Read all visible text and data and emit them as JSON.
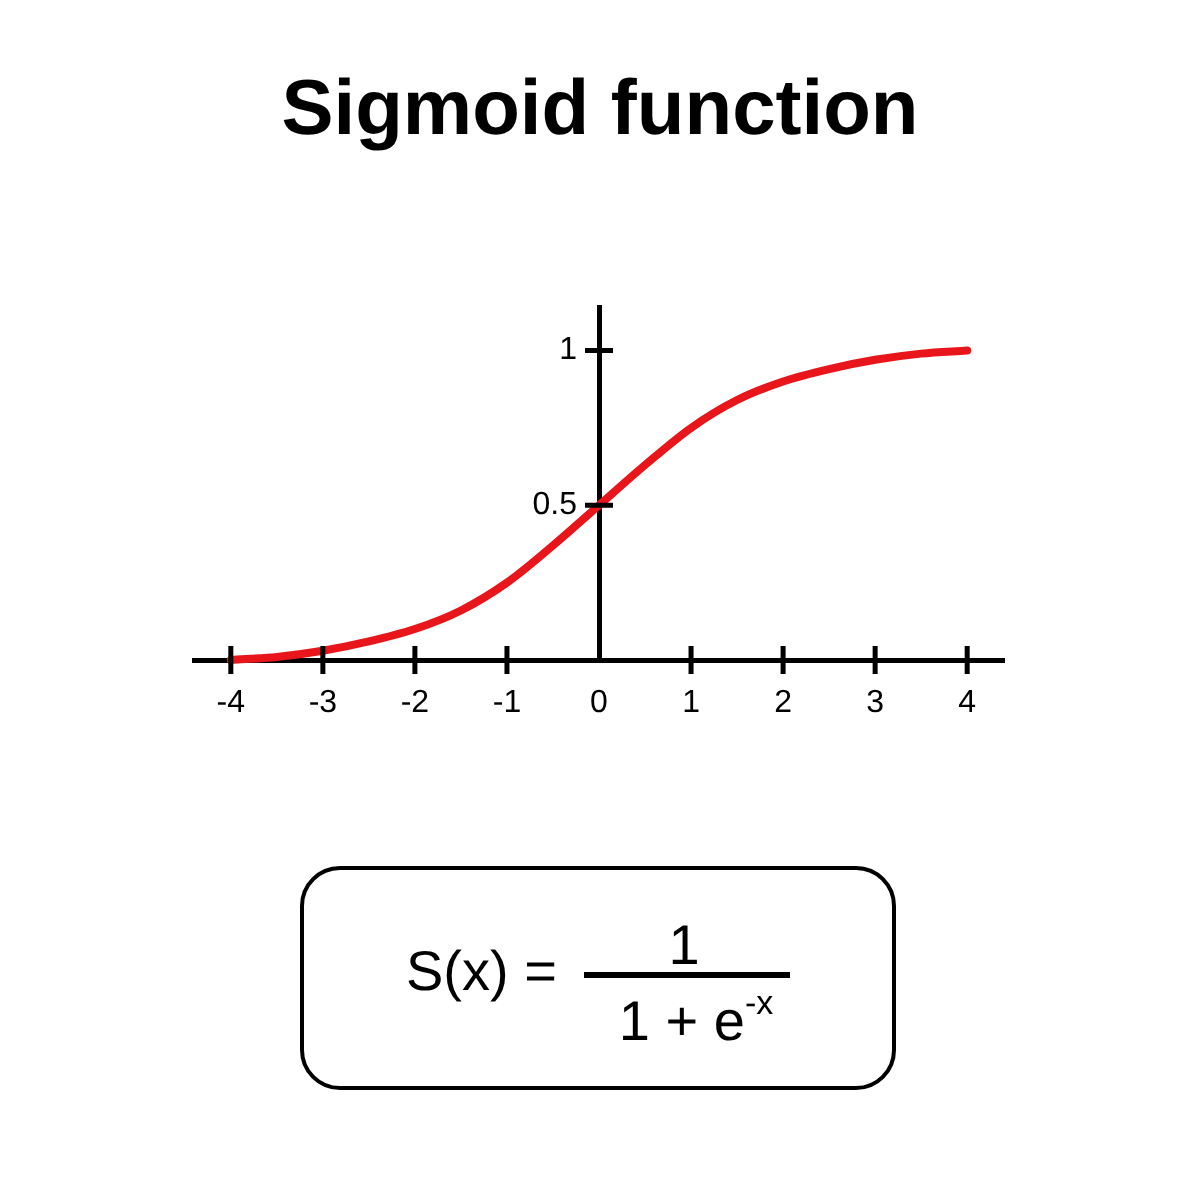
{
  "chart_data": {
    "type": "line",
    "title": "Sigmoid function",
    "x": [
      -4,
      -3.5,
      -3,
      -2.5,
      -2,
      -1.5,
      -1,
      -0.5,
      0,
      0.5,
      1,
      1.5,
      2,
      2.5,
      3,
      3.5,
      4
    ],
    "series": [
      {
        "color": "#e8161b",
        "values": [
          0,
          0.01,
          0.03,
          0.06,
          0.1,
          0.16,
          0.25,
          0.37,
          0.5,
          0.63,
          0.75,
          0.84,
          0.9,
          0.94,
          0.97,
          0.99,
          1
        ]
      }
    ],
    "xlim": [
      -4.4,
      4.4
    ],
    "xticks": [
      -4,
      -3,
      -2,
      -1,
      0,
      1,
      2,
      3,
      4
    ],
    "ylim": [
      0,
      1.14
    ],
    "yticks": [
      0.5,
      1
    ],
    "annotations": [
      "S(x) =",
      "1",
      "1 + e$^{-x}$"
    ],
    "marker": "none"
  }
}
